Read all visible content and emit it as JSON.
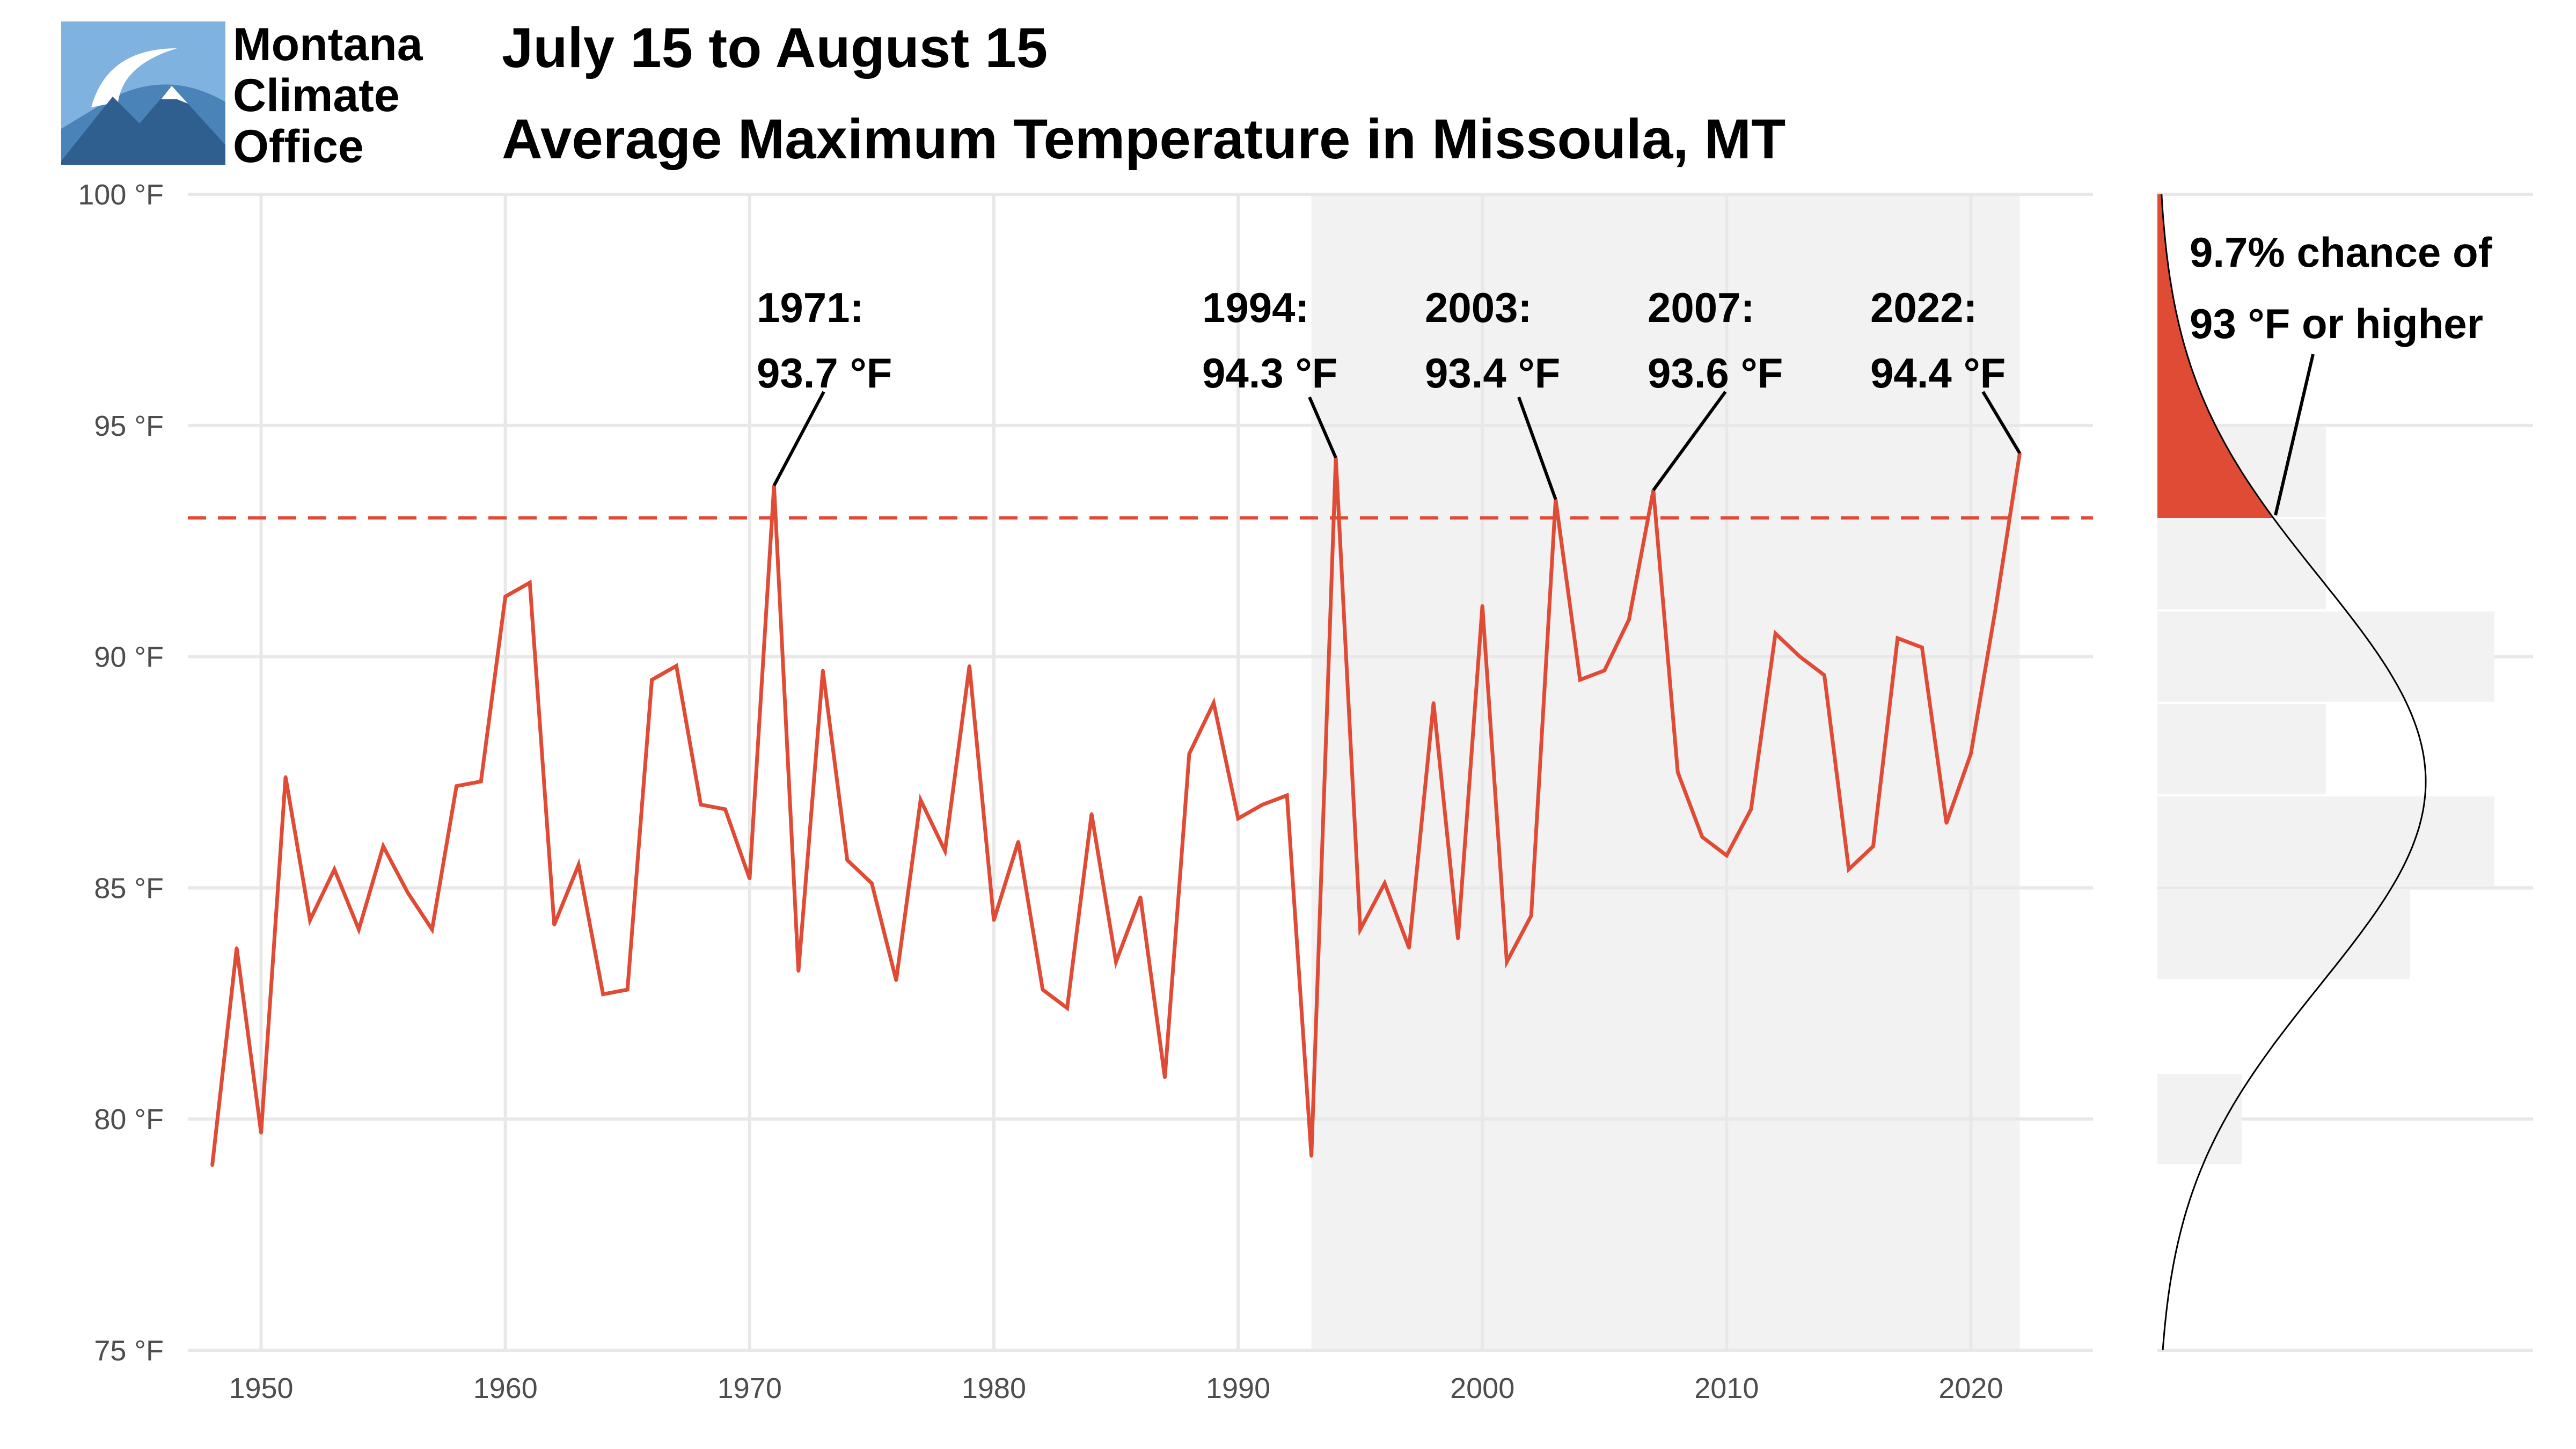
{
  "logo": {
    "line1": "Montana",
    "line2": "Climate",
    "line3": "Office"
  },
  "chart_data": {
    "type": "line",
    "title": "July 15 to August 15",
    "subtitle": "Average Maximum Temperature in Missoula, MT",
    "xlabel": "",
    "ylabel": "",
    "xlim": [
      1947,
      2025
    ],
    "ylim": [
      75,
      100
    ],
    "x_ticks": [
      "1950",
      "1960",
      "1970",
      "1980",
      "1990",
      "2000",
      "2010",
      "2020"
    ],
    "y_ticks": [
      "75 °F",
      "80 °F",
      "85 °F",
      "90 °F",
      "95 °F",
      "100 °F"
    ],
    "grid": true,
    "shaded_period": [
      1993,
      2022
    ],
    "threshold": 93,
    "series": [
      {
        "x": [
          1948,
          1949,
          1950,
          1951,
          1952,
          1953,
          1954,
          1955,
          1956,
          1957,
          1958,
          1959,
          1960,
          1961,
          1962,
          1963,
          1964,
          1965,
          1966,
          1967,
          1968,
          1969,
          1970,
          1971,
          1972,
          1973,
          1974,
          1975,
          1976,
          1977,
          1978,
          1979,
          1980,
          1981,
          1982,
          1983,
          1984,
          1985,
          1986,
          1987,
          1988,
          1989,
          1990,
          1991,
          1992,
          1993,
          1994,
          1995,
          1996,
          1997,
          1998,
          1999,
          2000,
          2001,
          2002,
          2003,
          2004,
          2005,
          2006,
          2007,
          2008,
          2009,
          2010,
          2011,
          2012,
          2013,
          2014,
          2015,
          2016,
          2017,
          2018,
          2019,
          2020,
          2021,
          2022
        ],
        "values": [
          79.0,
          83.7,
          79.7,
          87.4,
          84.3,
          85.4,
          84.1,
          85.9,
          84.9,
          84.1,
          87.2,
          87.3,
          91.3,
          91.6,
          84.2,
          85.5,
          82.7,
          82.8,
          89.5,
          89.8,
          86.8,
          86.7,
          85.2,
          93.7,
          83.2,
          89.7,
          85.6,
          85.1,
          83.0,
          86.9,
          85.8,
          89.8,
          84.3,
          86.0,
          82.8,
          82.4,
          86.6,
          83.4,
          84.8,
          80.9,
          87.9,
          89.0,
          86.5,
          86.8,
          87.0,
          79.2,
          94.3,
          84.1,
          85.1,
          83.7,
          89.0,
          83.9,
          91.1,
          83.4,
          84.4,
          93.4,
          89.5,
          89.7,
          90.8,
          93.6,
          87.5,
          86.1,
          85.7,
          86.7,
          90.5,
          90.0,
          89.6,
          85.4,
          85.9,
          90.4,
          90.2,
          86.4,
          87.9,
          91.0,
          94.4
        ]
      }
    ],
    "annotations": [
      {
        "year": 1971,
        "line1": "1971:",
        "line2": "93.7 °F"
      },
      {
        "year": 1994,
        "line1": "1994:",
        "line2": "94.3 °F"
      },
      {
        "year": 2003,
        "line1": "2003:",
        "line2": "93.4 °F"
      },
      {
        "year": 2007,
        "line1": "2007:",
        "line2": "93.6 °F"
      },
      {
        "year": 2022,
        "line1": "2022:",
        "line2": "94.4 °F"
      }
    ],
    "distribution": {
      "type": "histogram_with_normal_curve",
      "bin_width": 2,
      "bins": [
        {
          "from": 79,
          "to": 81,
          "count": 1
        },
        {
          "from": 81,
          "to": 83,
          "count": 0
        },
        {
          "from": 83,
          "to": 85,
          "count": 3
        },
        {
          "from": 85,
          "to": 87,
          "count": 4
        },
        {
          "from": 87,
          "to": 89,
          "count": 2
        },
        {
          "from": 89,
          "to": 91,
          "count": 4
        },
        {
          "from": 91,
          "to": 93,
          "count": 2
        },
        {
          "from": 93,
          "to": 95,
          "count": 2
        }
      ],
      "mean": 87.3,
      "sd": 4.4,
      "exceedance_label_line1": "9.7% chance of",
      "exceedance_label_line2": "93 °F or higher"
    },
    "colors": {
      "series": "#e04b35",
      "threshold": "#e04b35",
      "shading": "#f2f2f2",
      "grid": "#e8e8e8",
      "histogram": "#f2f2f2",
      "curve": "#000000"
    }
  }
}
